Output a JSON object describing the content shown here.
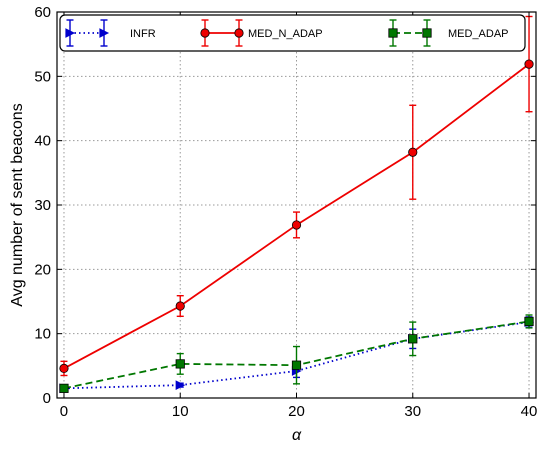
{
  "chart_data": {
    "type": "line",
    "title": "",
    "xlabel": "α",
    "ylabel": "Avg number of sent beacons",
    "xlim": [
      -0.6,
      40.6
    ],
    "ylim": [
      0,
      60
    ],
    "xticks": [
      0,
      10,
      20,
      30,
      40
    ],
    "yticks": [
      0,
      10,
      20,
      30,
      40,
      50,
      60
    ],
    "grid": true,
    "legend_position": "top",
    "series": [
      {
        "name": "INFR",
        "color": "#0000cc",
        "line_style": "dotted",
        "marker": "triangle-right",
        "x": [
          0,
          10,
          20,
          30,
          40
        ],
        "y": [
          1.5,
          2.0,
          4.2,
          9.2,
          11.8
        ],
        "err_low": [
          0.3,
          0.3,
          1.0,
          1.5,
          0.8
        ],
        "err_high": [
          0.3,
          0.3,
          1.0,
          1.5,
          0.8
        ]
      },
      {
        "name": "MED_N_ADAP",
        "color": "#ee0000",
        "line_style": "solid",
        "marker": "circle",
        "x": [
          0,
          10,
          20,
          30,
          40
        ],
        "y": [
          4.6,
          14.3,
          26.9,
          38.2,
          51.9
        ],
        "err_low": [
          1.1,
          1.6,
          2.0,
          7.3,
          7.4
        ],
        "err_high": [
          1.1,
          1.6,
          2.0,
          7.3,
          7.4
        ]
      },
      {
        "name": "MED_ADAP",
        "color": "#007700",
        "line_style": "dashed",
        "marker": "square",
        "x": [
          0,
          10,
          20,
          30,
          40
        ],
        "y": [
          1.5,
          5.3,
          5.1,
          9.2,
          11.9
        ],
        "err_low": [
          0.4,
          1.6,
          2.9,
          2.6,
          1.0
        ],
        "err_high": [
          0.4,
          1.6,
          2.9,
          2.6,
          1.0
        ]
      }
    ]
  }
}
